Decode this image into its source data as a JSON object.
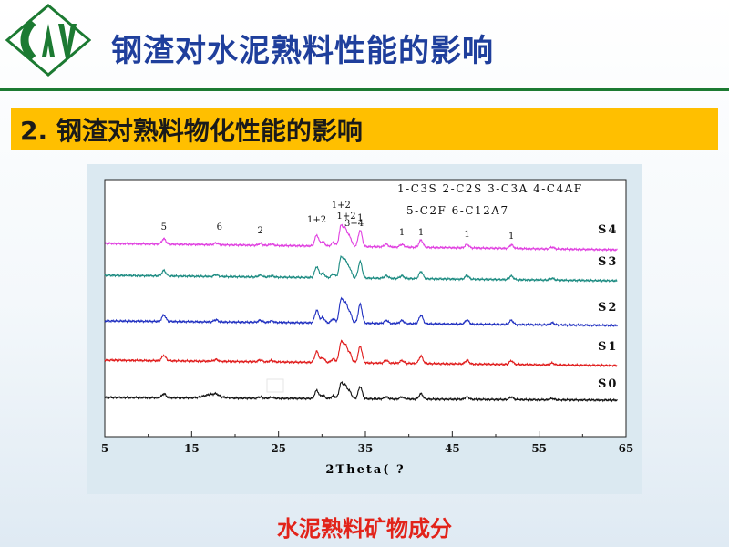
{
  "slide": {
    "title": "钢渣对水泥熟料性能的影响",
    "subtitle": "2. 钢渣对熟料物化性能的影响",
    "caption": "水泥熟料矿物成分",
    "colors": {
      "title": "#1f3f9c",
      "accent_bar": "#ffbf00",
      "rule": "#1c7a32",
      "caption": "#e2231a"
    }
  },
  "chart_data": {
    "type": "line",
    "xlabel": "2Theta( ?",
    "xlim": [
      5,
      65
    ],
    "x_ticks": [
      "5",
      "15",
      "25",
      "35",
      "45",
      "55",
      "65"
    ],
    "legend_lines": [
      "1-C3S 2-C2S 3-C3A 4-C4AF",
      "5-C2F 6-C12A7"
    ],
    "series": [
      {
        "name": "S4",
        "color": "#e040e0"
      },
      {
        "name": "S3",
        "color": "#1a8a80"
      },
      {
        "name": "S2",
        "color": "#1f2fc0"
      },
      {
        "name": "S1",
        "color": "#e01a1a"
      },
      {
        "name": "S0",
        "color": "#111111"
      }
    ],
    "peak_labels": [
      {
        "text": "5",
        "x": 11.8
      },
      {
        "text": "6",
        "x": 18.2
      },
      {
        "text": "2",
        "x": 22.9
      },
      {
        "text": "1+2",
        "x": 29.4
      },
      {
        "text": "1+2",
        "x": 32.2
      },
      {
        "text": "1+2",
        "x": 32.8
      },
      {
        "text": "3+4",
        "x": 33.7
      },
      {
        "text": "1",
        "x": 34.4
      },
      {
        "text": "1",
        "x": 39.2
      },
      {
        "text": "1",
        "x": 41.4
      },
      {
        "text": "1",
        "x": 46.7
      },
      {
        "text": "1",
        "x": 51.8
      }
    ]
  }
}
